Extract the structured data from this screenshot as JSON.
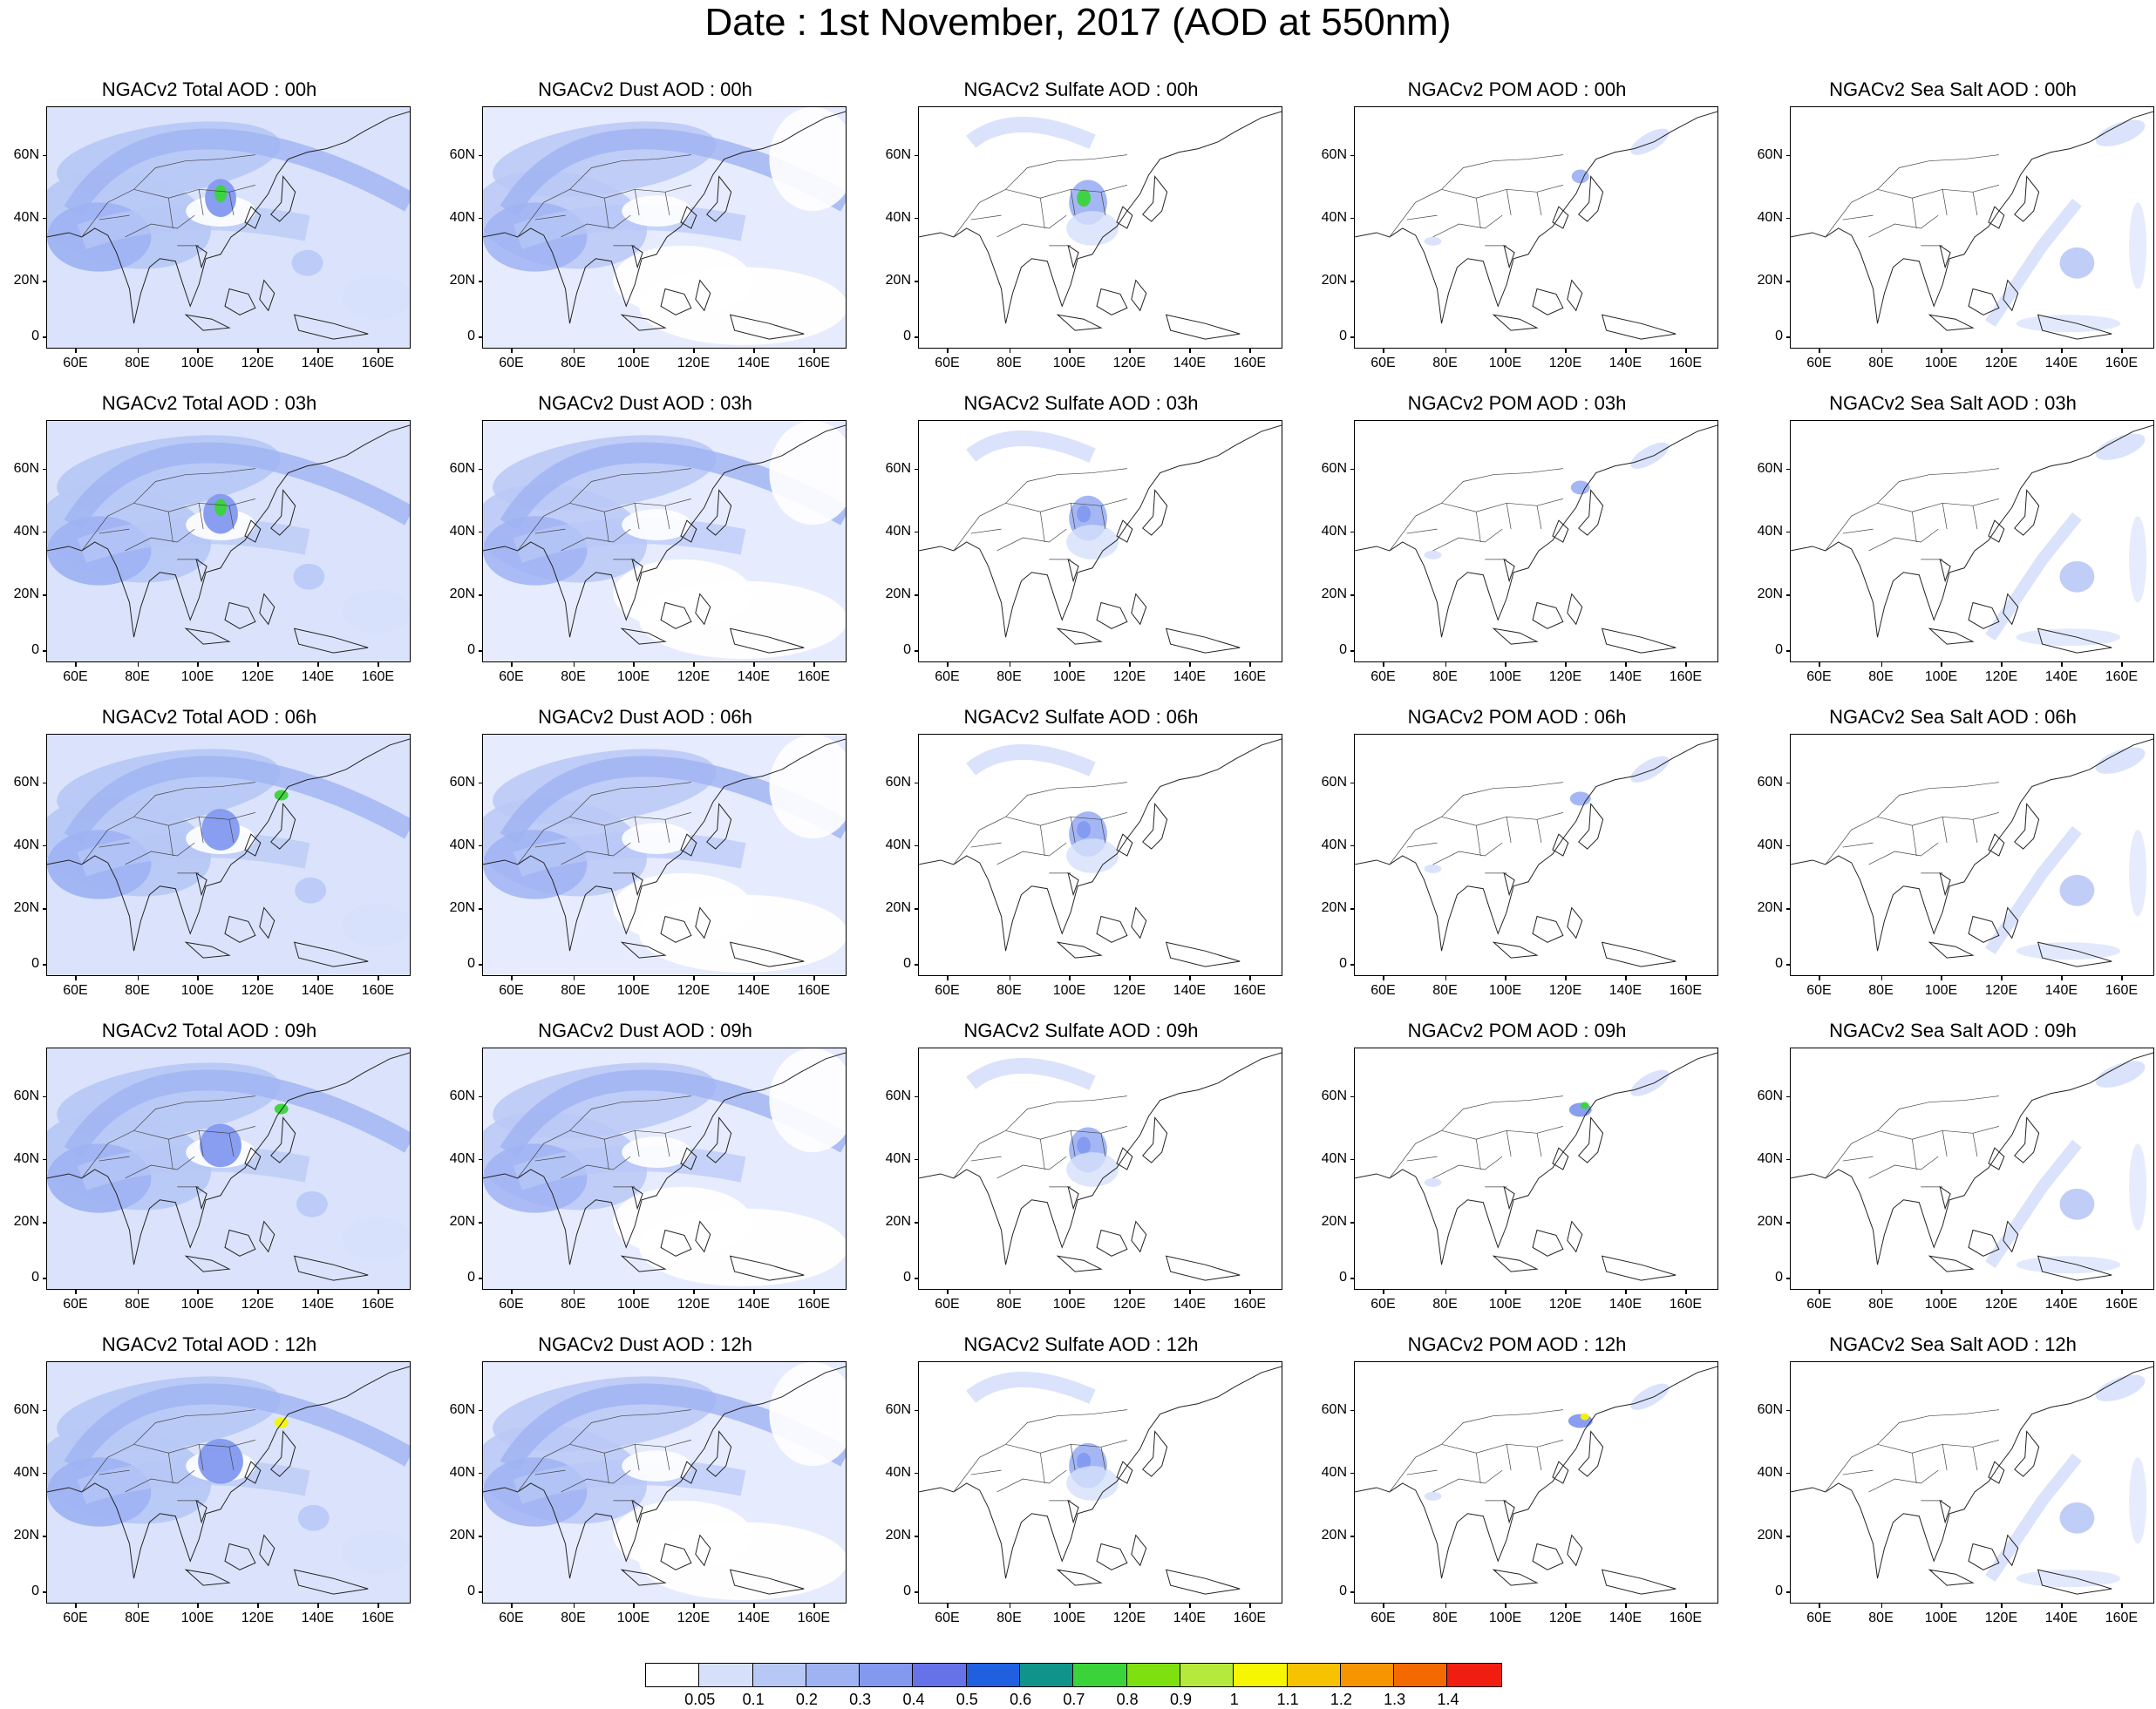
{
  "title": "Date : 1st November, 2017 (AOD at 550nm)",
  "lat_ticks": [
    "60N",
    "40N",
    "20N",
    "0"
  ],
  "lon_ticks": [
    "60E",
    "80E",
    "100E",
    "120E",
    "140E",
    "160E"
  ],
  "panel_titles": [
    [
      "NGACv2 Total AOD : 00h",
      "NGACv2 Dust AOD : 00h",
      "NGACv2 Sulfate AOD : 00h",
      "NGACv2 POM AOD : 00h",
      "NGACv2 Sea Salt AOD : 00h"
    ],
    [
      "NGACv2 Total AOD : 03h",
      "NGACv2 Dust AOD : 03h",
      "NGACv2 Sulfate AOD : 03h",
      "NGACv2 POM AOD : 03h",
      "NGACv2 Sea Salt AOD : 03h"
    ],
    [
      "NGACv2 Total AOD : 06h",
      "NGACv2 Dust AOD : 06h",
      "NGACv2 Sulfate AOD : 06h",
      "NGACv2 POM AOD : 06h",
      "NGACv2 Sea Salt AOD : 06h"
    ],
    [
      "NGACv2 Total AOD : 09h",
      "NGACv2 Dust AOD : 09h",
      "NGACv2 Sulfate AOD : 09h",
      "NGACv2 POM AOD : 09h",
      "NGACv2 Sea Salt  AOD : 09h"
    ],
    [
      "NGACv2 Total AOD  : 12h",
      "NGACv2 Dust AOD : 12h",
      "NGACv2 Sulfate AOD : 12h",
      "NGACv2 POM  AOD : 12h",
      "NGACv2 Sea Salt  AOD : 12h"
    ]
  ],
  "colorbar": {
    "labels": [
      "0.05",
      "0.1",
      "0.2",
      "0.3",
      "0.4",
      "0.5",
      "0.6",
      "0.7",
      "0.8",
      "0.9",
      "1",
      "1.1",
      "1.2",
      "1.3",
      "1.4"
    ],
    "colors": [
      "#ffffff",
      "#d6e0fb",
      "#b8c8f6",
      "#9fb3f3",
      "#8399ef",
      "#6672e8",
      "#1f5fe0",
      "#10938a",
      "#3ad43a",
      "#7fe010",
      "#b5ea3c",
      "#f6f600",
      "#f7c200",
      "#f79500",
      "#f56a00",
      "#f01e10"
    ]
  }
}
